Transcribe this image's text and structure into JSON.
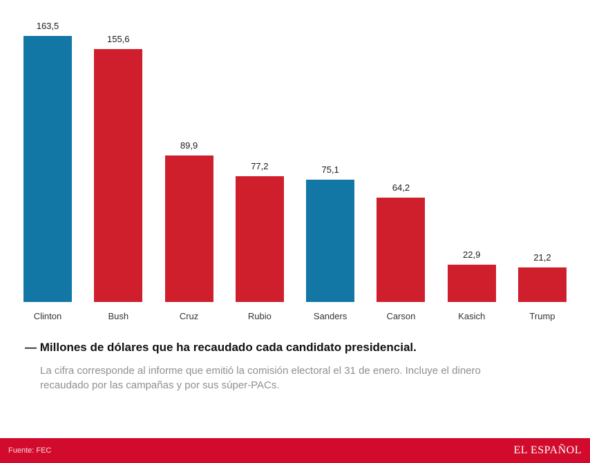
{
  "chart_data": {
    "type": "bar",
    "categories": [
      "Clinton",
      "Bush",
      "Cruz",
      "Rubio",
      "Sanders",
      "Carson",
      "Kasich",
      "Trump"
    ],
    "values": [
      163.5,
      155.6,
      89.9,
      77.2,
      75.1,
      64.2,
      22.9,
      21.2
    ],
    "value_labels": [
      "163,5",
      "155,6",
      "89,9",
      "77,2",
      "75,1",
      "64,2",
      "22,9",
      "21,2"
    ],
    "colors": [
      "#1377a5",
      "#cf1f2d",
      "#cf1f2d",
      "#cf1f2d",
      "#1377a5",
      "#cf1f2d",
      "#cf1f2d",
      "#cf1f2d"
    ],
    "ylim": [
      0,
      163.5
    ],
    "title": "Millones de dólares que ha recaudado cada candidato presidencial.",
    "xlabel": "",
    "ylabel": "",
    "legend": "none",
    "grid": false
  },
  "caption": {
    "dash": "—",
    "title": "Millones de dólares que ha recaudado cada candidato presidencial.",
    "subtitle": "La cifra corresponde al informe que emitió la comisión electoral el 31 de enero. Incluye el dinero recaudado por las campañas y por sus súper-PACs."
  },
  "footer": {
    "source": "Fuente: FEC",
    "brand": "EL ESPAÑOL"
  },
  "colors": {
    "democrat_blue": "#1377a5",
    "republican_red": "#cf1f2d",
    "footer_red": "#d20b2c"
  }
}
